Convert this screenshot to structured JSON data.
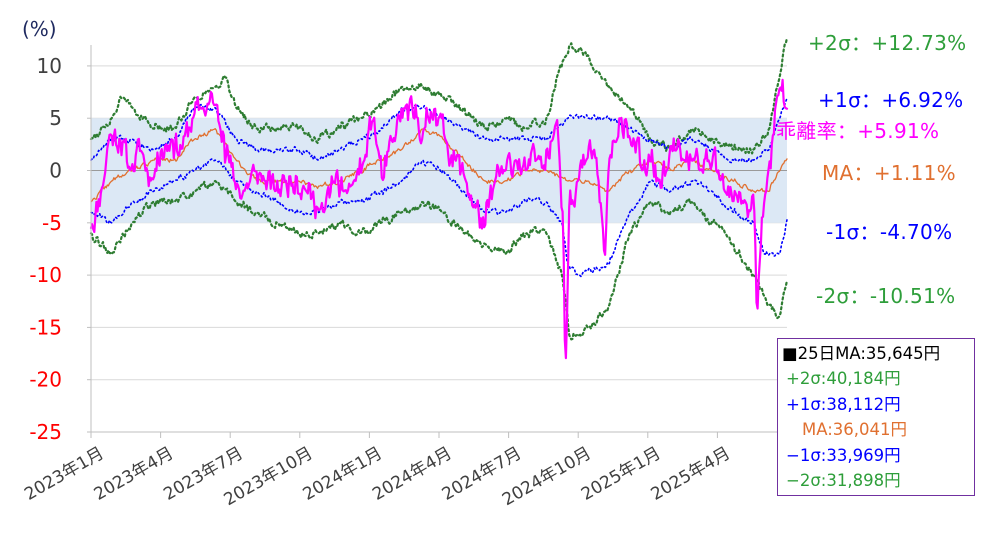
{
  "chart_data": {
    "type": "line",
    "y_unit_label": "(%)",
    "ylim": [
      -25,
      12
    ],
    "y_ticks": [
      10,
      5,
      0,
      -5,
      -10,
      -15,
      -20,
      -25
    ],
    "x_tick_labels": [
      "2023年1月",
      "2023年4月",
      "2023年7月",
      "2023年10月",
      "2024年1月",
      "2024年4月",
      "2024年7月",
      "2024年10月",
      "2025年1月",
      "2025年4月"
    ],
    "shaded_band": [
      -5,
      5
    ],
    "n_points": 640,
    "series": [
      {
        "key": "kairi",
        "color": "#ff00ff",
        "style": "solid",
        "knots": [
          [
            0,
            -5.5
          ],
          [
            10,
            -2
          ],
          [
            18,
            3.5
          ],
          [
            28,
            3
          ],
          [
            38,
            0
          ],
          [
            48,
            2
          ],
          [
            58,
            -1
          ],
          [
            68,
            2
          ],
          [
            78,
            3
          ],
          [
            88,
            2
          ],
          [
            98,
            5
          ],
          [
            108,
            6
          ],
          [
            118,
            6.5
          ],
          [
            128,
            3.5
          ],
          [
            138,
            -1
          ],
          [
            148,
            -2
          ],
          [
            158,
            0
          ],
          [
            168,
            -1
          ],
          [
            178,
            -2
          ],
          [
            188,
            -1
          ],
          [
            198,
            -0.5
          ],
          [
            208,
            -2
          ],
          [
            218,
            -3.5
          ],
          [
            225,
            -4
          ],
          [
            234,
            -1
          ],
          [
            244,
            -2
          ],
          [
            254,
            -1
          ],
          [
            264,
            1
          ],
          [
            272,
            5
          ],
          [
            282,
            -1
          ],
          [
            292,
            3
          ],
          [
            302,
            6
          ],
          [
            312,
            5
          ],
          [
            322,
            4
          ],
          [
            332,
            6
          ],
          [
            342,
            3
          ],
          [
            352,
            1
          ],
          [
            362,
            -1
          ],
          [
            371,
            -3.5
          ],
          [
            380,
            -5.5
          ],
          [
            390,
            -1
          ],
          [
            400,
            0
          ],
          [
            410,
            1
          ],
          [
            420,
            0
          ],
          [
            430,
            1
          ],
          [
            440,
            2
          ],
          [
            446,
            3
          ],
          [
            450,
            5
          ],
          [
            456,
            -5
          ],
          [
            458,
            -20.3
          ],
          [
            462,
            -2
          ],
          [
            470,
            -1
          ],
          [
            478,
            1
          ],
          [
            486,
            2
          ],
          [
            494,
            -5
          ],
          [
            496,
            -9
          ],
          [
            500,
            1
          ],
          [
            508,
            3
          ],
          [
            516,
            5
          ],
          [
            524,
            3
          ],
          [
            532,
            0
          ],
          [
            540,
            1
          ],
          [
            548,
            -1
          ],
          [
            556,
            0
          ],
          [
            564,
            2
          ],
          [
            572,
            1
          ],
          [
            580,
            1
          ],
          [
            588,
            0
          ],
          [
            596,
            1
          ],
          [
            604,
            0
          ],
          [
            612,
            -2
          ],
          [
            620,
            -3
          ],
          [
            626,
            -2
          ],
          [
            632,
            -3
          ],
          [
            636,
            -4
          ],
          [
            640,
            -2
          ],
          [
            643,
            -14.5
          ],
          [
            646,
            -8
          ],
          [
            650,
            -3
          ],
          [
            654,
            0
          ],
          [
            658,
            3
          ],
          [
            662,
            7
          ],
          [
            666,
            8
          ],
          [
            670,
            6
          ],
          [
            672,
            5.91
          ]
        ]
      },
      {
        "key": "ma",
        "color": "#e07030",
        "style": "solid",
        "knots": [
          [
            0,
            -3
          ],
          [
            20,
            -1
          ],
          [
            40,
            0
          ],
          [
            60,
            1
          ],
          [
            80,
            1
          ],
          [
            100,
            3
          ],
          [
            120,
            4
          ],
          [
            140,
            1
          ],
          [
            160,
            -1
          ],
          [
            180,
            -1
          ],
          [
            200,
            -1
          ],
          [
            220,
            -1.5
          ],
          [
            240,
            -1
          ],
          [
            260,
            0
          ],
          [
            280,
            1
          ],
          [
            300,
            2
          ],
          [
            320,
            4
          ],
          [
            340,
            3
          ],
          [
            360,
            1
          ],
          [
            380,
            -1
          ],
          [
            400,
            -1
          ],
          [
            420,
            0
          ],
          [
            440,
            0
          ],
          [
            460,
            -1
          ],
          [
            480,
            -1
          ],
          [
            500,
            -2
          ],
          [
            520,
            0
          ],
          [
            540,
            1
          ],
          [
            560,
            0
          ],
          [
            580,
            1
          ],
          [
            600,
            0
          ],
          [
            620,
            -1
          ],
          [
            640,
            -2
          ],
          [
            655,
            -2
          ],
          [
            665,
            0
          ],
          [
            672,
            1.11
          ]
        ]
      },
      {
        "key": "p1s",
        "color": "#0000ff",
        "style": "dotted",
        "knots": [
          [
            0,
            1
          ],
          [
            20,
            3
          ],
          [
            40,
            3
          ],
          [
            60,
            2
          ],
          [
            80,
            3
          ],
          [
            100,
            6
          ],
          [
            120,
            6
          ],
          [
            140,
            3
          ],
          [
            160,
            2
          ],
          [
            180,
            2
          ],
          [
            200,
            2
          ],
          [
            220,
            1
          ],
          [
            240,
            2
          ],
          [
            260,
            3
          ],
          [
            280,
            4
          ],
          [
            300,
            6
          ],
          [
            320,
            6
          ],
          [
            340,
            5
          ],
          [
            360,
            4
          ],
          [
            380,
            3
          ],
          [
            400,
            3
          ],
          [
            420,
            3
          ],
          [
            440,
            3
          ],
          [
            450,
            4
          ],
          [
            460,
            5
          ],
          [
            480,
            5
          ],
          [
            500,
            5
          ],
          [
            520,
            4
          ],
          [
            540,
            3
          ],
          [
            560,
            2
          ],
          [
            580,
            3
          ],
          [
            600,
            2
          ],
          [
            620,
            1
          ],
          [
            640,
            1
          ],
          [
            655,
            2
          ],
          [
            665,
            5
          ],
          [
            672,
            6.92
          ]
        ]
      },
      {
        "key": "m1s",
        "color": "#0000ff",
        "style": "dotted",
        "knots": [
          [
            0,
            -4
          ],
          [
            20,
            -5
          ],
          [
            40,
            -3
          ],
          [
            60,
            -2
          ],
          [
            80,
            -1
          ],
          [
            100,
            0
          ],
          [
            120,
            1
          ],
          [
            140,
            -1
          ],
          [
            160,
            -2
          ],
          [
            180,
            -3
          ],
          [
            200,
            -4
          ],
          [
            220,
            -4
          ],
          [
            240,
            -3
          ],
          [
            260,
            -3
          ],
          [
            280,
            -2
          ],
          [
            300,
            -1
          ],
          [
            320,
            1
          ],
          [
            340,
            0
          ],
          [
            360,
            -2
          ],
          [
            380,
            -4
          ],
          [
            400,
            -4
          ],
          [
            420,
            -3
          ],
          [
            440,
            -3
          ],
          [
            455,
            -5
          ],
          [
            460,
            -9
          ],
          [
            470,
            -10
          ],
          [
            500,
            -9
          ],
          [
            520,
            -4
          ],
          [
            540,
            -1
          ],
          [
            560,
            -2
          ],
          [
            580,
            -1
          ],
          [
            600,
            -2
          ],
          [
            620,
            -4
          ],
          [
            640,
            -5
          ],
          [
            650,
            -8
          ],
          [
            665,
            -8
          ],
          [
            672,
            -4.7
          ]
        ]
      },
      {
        "key": "p2s",
        "color": "#2e7d32",
        "style": "dotted",
        "knots": [
          [
            0,
            3
          ],
          [
            20,
            5
          ],
          [
            30,
            7
          ],
          [
            40,
            6
          ],
          [
            60,
            4
          ],
          [
            80,
            4
          ],
          [
            100,
            7
          ],
          [
            120,
            8
          ],
          [
            130,
            9
          ],
          [
            140,
            6
          ],
          [
            160,
            4
          ],
          [
            180,
            4
          ],
          [
            200,
            4
          ],
          [
            220,
            3
          ],
          [
            240,
            4
          ],
          [
            260,
            5
          ],
          [
            280,
            6
          ],
          [
            300,
            8
          ],
          [
            320,
            8
          ],
          [
            340,
            7
          ],
          [
            360,
            6
          ],
          [
            380,
            4
          ],
          [
            400,
            5
          ],
          [
            420,
            4
          ],
          [
            440,
            5
          ],
          [
            450,
            9
          ],
          [
            462,
            12
          ],
          [
            480,
            11
          ],
          [
            500,
            8
          ],
          [
            520,
            6
          ],
          [
            540,
            3
          ],
          [
            560,
            2
          ],
          [
            580,
            4
          ],
          [
            600,
            3
          ],
          [
            620,
            2
          ],
          [
            640,
            2
          ],
          [
            655,
            4
          ],
          [
            665,
            9
          ],
          [
            672,
            12.73
          ]
        ]
      },
      {
        "key": "m2s",
        "color": "#2e7d32",
        "style": "dotted",
        "knots": [
          [
            0,
            -6
          ],
          [
            20,
            -8
          ],
          [
            40,
            -5
          ],
          [
            60,
            -3
          ],
          [
            80,
            -3
          ],
          [
            100,
            -2
          ],
          [
            120,
            -1
          ],
          [
            140,
            -3
          ],
          [
            160,
            -4
          ],
          [
            180,
            -5
          ],
          [
            200,
            -6
          ],
          [
            220,
            -6
          ],
          [
            240,
            -5
          ],
          [
            260,
            -6
          ],
          [
            280,
            -5
          ],
          [
            300,
            -4
          ],
          [
            320,
            -3
          ],
          [
            340,
            -4
          ],
          [
            360,
            -6
          ],
          [
            380,
            -7
          ],
          [
            400,
            -8
          ],
          [
            420,
            -6
          ],
          [
            440,
            -6
          ],
          [
            455,
            -10
          ],
          [
            462,
            -16
          ],
          [
            480,
            -15
          ],
          [
            500,
            -13
          ],
          [
            520,
            -6
          ],
          [
            540,
            -3
          ],
          [
            560,
            -4
          ],
          [
            580,
            -3
          ],
          [
            600,
            -5
          ],
          [
            620,
            -7
          ],
          [
            640,
            -10
          ],
          [
            650,
            -12
          ],
          [
            665,
            -14
          ],
          [
            672,
            -10.51
          ]
        ]
      }
    ]
  },
  "right_labels": {
    "p2s": "+2σ：+12.73%",
    "p1s": "+1σ：+6.92%",
    "kairi": "乖離率：+5.91%",
    "ma": "MA：+1.11%",
    "m1s": "-1σ：-4.70%",
    "m2s": "-2σ：-10.51%"
  },
  "info_box": {
    "title": "■25日MA:35,645円",
    "p2s": "+2σ:40,184円",
    "p1s": "+1σ:38,112円",
    "ma": "MA:36,041円",
    "m1s": "−1σ:33,969円",
    "m2s": "−2σ:31,898円"
  },
  "colors": {
    "negative_tick": "#ff0000",
    "positive_tick": "#404040",
    "band": "#dce8f5",
    "ma_label": "#e07030",
    "sigma1_label": "#0000ff",
    "sigma2_label": "#2e9e3a",
    "kairi_label": "#ff00ff"
  }
}
